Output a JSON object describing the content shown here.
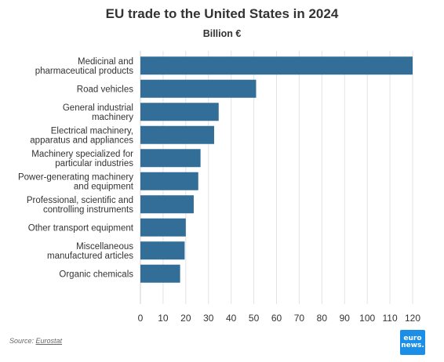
{
  "header": {
    "title": "EU trade to the United States in 2024",
    "subtitle": "Billion €"
  },
  "footer": {
    "source_prefix": "Source: ",
    "source_name": "Eurostat",
    "logo_line1": "euro",
    "logo_line2": "news."
  },
  "colors": {
    "bar": "#336e98",
    "grid": "#e3e3e3",
    "logo_bg": "#1b8ee8"
  },
  "chart_data": {
    "type": "bar",
    "orientation": "horizontal",
    "title": "EU trade to the United States in 2024",
    "subtitle": "Billion €",
    "xlim": [
      0,
      120
    ],
    "xticks": [
      0,
      10,
      20,
      30,
      40,
      50,
      60,
      70,
      80,
      90,
      100,
      110,
      120
    ],
    "grid": true,
    "categories": [
      [
        "Medicinal and",
        "pharmaceutical products"
      ],
      [
        "Road vehicles"
      ],
      [
        "General industrial",
        "machinery"
      ],
      [
        "Electrical machinery,",
        "apparatus and appliances"
      ],
      [
        "Machinery specialized for",
        "particular industries"
      ],
      [
        "Power-generating machinery",
        "and equipment"
      ],
      [
        "Professional, scientific and",
        "controlling instruments"
      ],
      [
        "Other transport equipment"
      ],
      [
        "Miscellaneous",
        "manufactured articles"
      ],
      [
        "Organic chemicals"
      ]
    ],
    "values": [
      120,
      51,
      34.5,
      32.5,
      26.5,
      25.5,
      23.5,
      20,
      19.5,
      17.5
    ]
  }
}
